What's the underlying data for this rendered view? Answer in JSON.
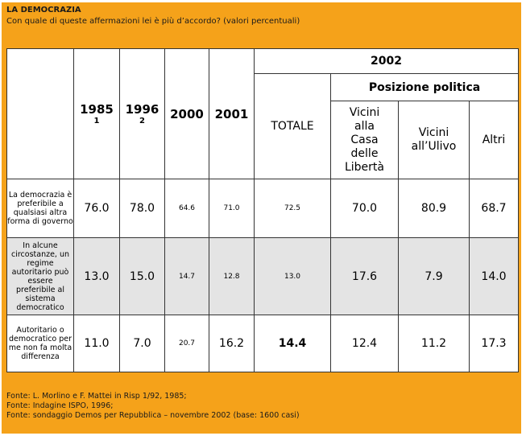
{
  "header": {
    "title": "LA DEMOCRAZIA",
    "subtitle": "Con quale di queste affermazioni lei è più d’accordo? (valori percentuali)"
  },
  "columns": {
    "y1985": "1985",
    "y1985_note": "1",
    "y1996": "1996",
    "y1996_note": "2",
    "y2000": "2000",
    "y2001": "2001",
    "y2002": "2002",
    "totale": "TOTALE",
    "posizione": "Posizione politica",
    "cdl": "Vicini alla Casa delle Libertà",
    "ulivo": "Vicini all’Ulivo",
    "altri": "Altri"
  },
  "rows": [
    {
      "label": "La democrazia è preferibile a qualsiasi altra forma di governo",
      "v1985": "76.0",
      "v1996": "78.0",
      "v2000": "64.6",
      "v2001": "71.0",
      "totale": "72.5",
      "cdl": "70.0",
      "ulivo": "80.9",
      "altri": "68.7"
    },
    {
      "label": "In alcune circostanze, un regime autoritario può essere preferibile al sistema democratico",
      "v1985": "13.0",
      "v1996": "15.0",
      "v2000": "14.7",
      "v2001": "12.8",
      "totale": "13.0",
      "cdl": "17.6",
      "ulivo": "7.9",
      "altri": "14.0"
    },
    {
      "label": "Autoritario o democratico per me non fa molta differenza",
      "v1985": "11.0",
      "v1996": "7.0",
      "v2000": "20.7",
      "v2001": "16.2",
      "totale": "14.4",
      "cdl": "12.4",
      "ulivo": "11.2",
      "altri": "17.3"
    }
  ],
  "sources": [
    "Fonte: L. Morlino e F. Mattei in Risp 1/92, 1985;",
    "Fonte: Indagine ISPO, 1996;",
    "Fonte: sondaggio Demos per Repubblica – novembre 2002 (base: 1600 casi)"
  ]
}
